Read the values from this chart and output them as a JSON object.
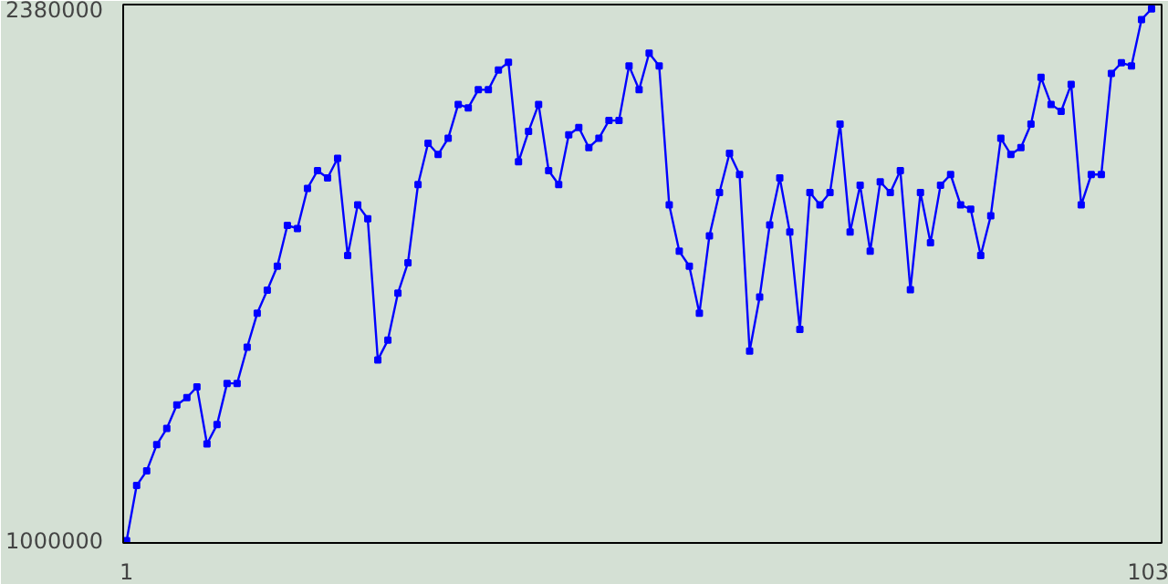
{
  "chart_data": {
    "type": "line",
    "x": [
      1,
      2,
      3,
      4,
      5,
      6,
      7,
      8,
      9,
      10,
      11,
      12,
      13,
      14,
      15,
      16,
      17,
      18,
      19,
      20,
      21,
      22,
      23,
      24,
      25,
      26,
      27,
      28,
      29,
      30,
      31,
      32,
      33,
      34,
      35,
      36,
      37,
      38,
      39,
      40,
      41,
      42,
      43,
      44,
      45,
      46,
      47,
      48,
      49,
      50,
      51,
      52,
      53,
      54,
      55,
      56,
      57,
      58,
      59,
      60,
      61,
      62,
      63,
      64,
      65,
      66,
      67,
      68,
      69,
      70,
      71,
      72,
      73,
      74,
      75,
      76,
      77,
      78,
      79,
      80,
      81,
      82,
      83,
      84,
      85,
      86,
      87,
      88,
      89,
      90,
      91,
      92,
      93,
      94,
      95,
      96,
      97,
      98,
      99,
      100,
      101,
      102,
      103
    ],
    "series": [
      {
        "color": "#0000ff",
        "values": [
          1000000,
          1143000,
          1181000,
          1249000,
          1291000,
          1352000,
          1371000,
          1399000,
          1251000,
          1301000,
          1408000,
          1408000,
          1502000,
          1590000,
          1650000,
          1712000,
          1818000,
          1810000,
          1914000,
          1960000,
          1941000,
          1992000,
          1740000,
          1871000,
          1835000,
          1469000,
          1520000,
          1642000,
          1721000,
          1924000,
          2031000,
          2002000,
          2044000,
          2132000,
          2123000,
          2170000,
          2170000,
          2221000,
          2241000,
          1983000,
          2062000,
          2132000,
          1960000,
          1924000,
          2053000,
          2072000,
          2020000,
          2044000,
          2090000,
          2090000,
          2232000,
          2170000,
          2265000,
          2232000,
          1871000,
          1751000,
          1712000,
          1590000,
          1791000,
          1903000,
          2005000,
          1950000,
          1492000,
          1632000,
          1819000,
          1941000,
          1801000,
          1548000,
          1903000,
          1871000,
          1903000,
          2081000,
          1801000,
          1922000,
          1751000,
          1931000,
          1903000,
          1960000,
          1651000,
          1903000,
          1773000,
          1922000,
          1950000,
          1871000,
          1860000,
          1740000,
          1843000,
          2044000,
          2002000,
          2020000,
          2081000,
          2202000,
          2132000,
          2114000,
          2184000,
          1871000,
          1950000,
          1950000,
          2212000,
          2240000,
          2232000,
          2352000,
          2380000
        ]
      }
    ],
    "xlim": [
      0.66,
      104
    ],
    "xticks": [
      1,
      103
    ],
    "ylim": [
      994000,
      2391000
    ],
    "yticks": [
      1000000,
      2380000
    ],
    "grid": false,
    "marker": "square",
    "line_style": "solid"
  }
}
